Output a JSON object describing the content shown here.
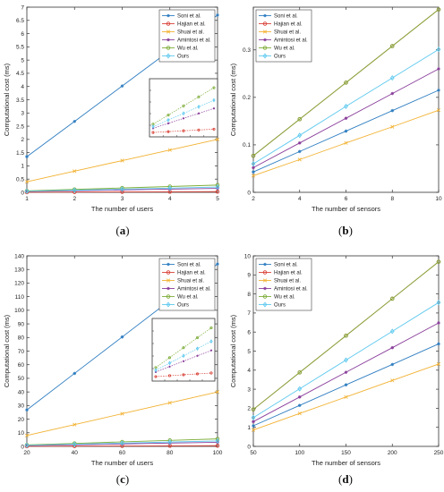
{
  "colors": {
    "Soni et al.": "#2f7ec1",
    "Hajian et al.": "#d9443a",
    "Shuai et al.": "#f2b233",
    "Amintosi et al.": "#8a3e9b",
    "Wu et al.": "#7fae3b",
    "Ours": "#5ec9ef"
  },
  "markers": {
    "Soni et al.": "star",
    "Hajian et al.": "circle",
    "Shuai et al.": "x",
    "Amintosi et al.": "star",
    "Wu et al.": "circle",
    "Ours": "diamond"
  },
  "chart_data": [
    {
      "id": "a",
      "type": "line",
      "caption": "(a)",
      "xlabel": "The number of users",
      "ylabel": "Computational cost (ms)",
      "xticks": [
        1,
        2,
        3,
        4,
        5
      ],
      "yticks": [
        0,
        0.5,
        1,
        1.5,
        2,
        2.5,
        3,
        3.5,
        4,
        4.5,
        5,
        5.5,
        6,
        6.5,
        7
      ],
      "xlim": [
        1,
        5
      ],
      "ylim": [
        0,
        7
      ],
      "legend_position": "top-right",
      "inset": true,
      "x": [
        1,
        2,
        3,
        4,
        5
      ],
      "series": [
        {
          "name": "Soni et al.",
          "values": [
            1.35,
            2.68,
            4.02,
            5.36,
            6.7
          ]
        },
        {
          "name": "Hajian et al.",
          "values": [
            0.005,
            0.01,
            0.015,
            0.02,
            0.025
          ]
        },
        {
          "name": "Shuai et al.",
          "values": [
            0.4,
            0.8,
            1.2,
            1.6,
            2.0
          ]
        },
        {
          "name": "Amintosi et al.",
          "values": [
            0.03,
            0.06,
            0.09,
            0.12,
            0.15
          ]
        },
        {
          "name": "Wu et al.",
          "values": [
            0.055,
            0.11,
            0.165,
            0.22,
            0.275
          ]
        },
        {
          "name": "Ours",
          "values": [
            0.04,
            0.08,
            0.12,
            0.16,
            0.2
          ]
        }
      ]
    },
    {
      "id": "b",
      "type": "line",
      "caption": "(b)",
      "xlabel": "The number of sensors",
      "ylabel": "Computational cost (ms)",
      "xticks": [
        2,
        4,
        6,
        8,
        10
      ],
      "yticks": [
        0,
        0.1,
        0.2,
        0.3
      ],
      "xlim": [
        2,
        10
      ],
      "ylim": [
        0,
        0.39
      ],
      "legend_position": "top-left",
      "inset": false,
      "x": [
        2,
        4,
        6,
        8,
        10
      ],
      "series": [
        {
          "name": "Soni et al.",
          "values": [
            0.043,
            0.086,
            0.129,
            0.172,
            0.215
          ]
        },
        {
          "name": "Hajian et al.",
          "values": [
            0.077,
            0.154,
            0.231,
            0.308,
            0.385
          ]
        },
        {
          "name": "Shuai et al.",
          "values": [
            0.035,
            0.069,
            0.104,
            0.138,
            0.173
          ]
        },
        {
          "name": "Amintosi et al.",
          "values": [
            0.052,
            0.104,
            0.156,
            0.208,
            0.26
          ]
        },
        {
          "name": "Wu et al.",
          "values": [
            0.077,
            0.154,
            0.231,
            0.308,
            0.385
          ]
        },
        {
          "name": "Ours",
          "values": [
            0.06,
            0.12,
            0.181,
            0.241,
            0.301
          ]
        }
      ]
    },
    {
      "id": "c",
      "type": "line",
      "caption": "(c)",
      "xlabel": "The number of users",
      "ylabel": "Computational cost (ms)",
      "xticks": [
        20,
        40,
        60,
        80,
        100
      ],
      "yticks": [
        0,
        10,
        20,
        30,
        40,
        50,
        60,
        70,
        80,
        90,
        100,
        110,
        120,
        130,
        140
      ],
      "xlim": [
        20,
        100
      ],
      "ylim": [
        0,
        140
      ],
      "legend_position": "top-right",
      "inset": true,
      "x": [
        20,
        40,
        60,
        80,
        100
      ],
      "series": [
        {
          "name": "Soni et al.",
          "values": [
            26.8,
            53.6,
            80.4,
            107.2,
            134.0
          ]
        },
        {
          "name": "Hajian et al.",
          "values": [
            0.1,
            0.2,
            0.3,
            0.4,
            0.5
          ]
        },
        {
          "name": "Shuai et al.",
          "values": [
            8.0,
            16.0,
            24.0,
            32.0,
            40.0
          ]
        },
        {
          "name": "Amintosi et al.",
          "values": [
            0.6,
            1.2,
            1.8,
            2.4,
            3.0
          ]
        },
        {
          "name": "Wu et al.",
          "values": [
            1.1,
            2.2,
            3.3,
            4.4,
            5.5
          ]
        },
        {
          "name": "Ours",
          "values": [
            0.8,
            1.6,
            2.4,
            3.2,
            4.0
          ]
        }
      ]
    },
    {
      "id": "d",
      "type": "line",
      "caption": "(d)",
      "xlabel": "The number of sensors",
      "ylabel": "Computational cost (ms)",
      "xticks": [
        50,
        100,
        150,
        200,
        250
      ],
      "yticks": [
        0,
        1,
        2,
        3,
        4,
        5,
        6,
        7,
        8,
        9,
        10
      ],
      "xlim": [
        50,
        250
      ],
      "ylim": [
        0,
        10
      ],
      "legend_position": "top-left",
      "inset": false,
      "x": [
        50,
        100,
        150,
        200,
        250
      ],
      "series": [
        {
          "name": "Soni et al.",
          "values": [
            1.08,
            2.15,
            3.23,
            4.3,
            5.38
          ]
        },
        {
          "name": "Hajian et al.",
          "values": [
            1.94,
            3.88,
            5.81,
            7.75,
            9.69
          ]
        },
        {
          "name": "Shuai et al.",
          "values": [
            0.86,
            1.73,
            2.59,
            3.46,
            4.32
          ]
        },
        {
          "name": "Amintosi et al.",
          "values": [
            1.3,
            2.59,
            3.89,
            5.18,
            6.48
          ]
        },
        {
          "name": "Wu et al.",
          "values": [
            1.94,
            3.88,
            5.81,
            7.75,
            9.69
          ]
        },
        {
          "name": "Ours",
          "values": [
            1.51,
            3.02,
            4.53,
            6.04,
            7.55
          ]
        }
      ]
    }
  ]
}
